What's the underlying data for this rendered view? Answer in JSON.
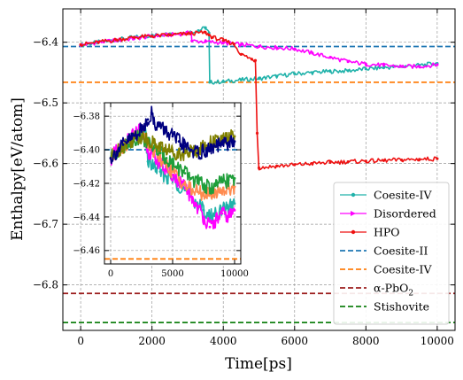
{
  "chart_data": [
    {
      "type": "line",
      "xlabel": "Time[ps]",
      "ylabel": "Enthalpy[eV/atom]",
      "xlim": [
        -500,
        10500
      ],
      "ylim": [
        -6.875,
        -6.345
      ],
      "xticks": [
        0,
        2000,
        4000,
        6000,
        8000,
        10000
      ],
      "xtick_labels": [
        "0",
        "2000",
        "4000",
        "6000",
        "8000",
        "10000"
      ],
      "yticks": [
        -6.8,
        -6.7,
        -6.6,
        -6.5,
        -6.4
      ],
      "ytick_labels": [
        "−6.8",
        "−6.7",
        "−6.6",
        "−6.5",
        "−6.4"
      ],
      "grid": true,
      "legend_position": "bottom-right",
      "series": [
        {
          "name": "Coesite-IV",
          "color": "#20b2aa",
          "marker": "dot",
          "x": [
            0,
            500,
            1000,
            1500,
            2000,
            2500,
            3000,
            3300,
            3500,
            3600,
            3620,
            4000,
            4500,
            5000,
            5500,
            6000,
            6500,
            7000,
            7500,
            8000,
            8500,
            9000,
            9500,
            10000
          ],
          "y": [
            -6.405,
            -6.4,
            -6.396,
            -6.392,
            -6.389,
            -6.386,
            -6.384,
            -6.381,
            -6.376,
            -6.385,
            -6.466,
            -6.465,
            -6.462,
            -6.46,
            -6.456,
            -6.452,
            -6.45,
            -6.448,
            -6.447,
            -6.444,
            -6.442,
            -6.44,
            -6.438,
            -6.435
          ]
        },
        {
          "name": "Disordered",
          "color": "#ff00ff",
          "marker": "arrow",
          "x": [
            0,
            500,
            1000,
            1500,
            2000,
            2500,
            3000,
            3100,
            3120,
            3500,
            4000,
            4500,
            5000,
            5500,
            6000,
            6500,
            7000,
            7500,
            8000,
            8500,
            9000,
            9500,
            10000
          ],
          "y": [
            -6.405,
            -6.4,
            -6.397,
            -6.394,
            -6.39,
            -6.388,
            -6.385,
            -6.384,
            -6.398,
            -6.399,
            -6.401,
            -6.404,
            -6.407,
            -6.409,
            -6.411,
            -6.418,
            -6.425,
            -6.432,
            -6.436,
            -6.438,
            -6.44,
            -6.44,
            -6.437
          ]
        },
        {
          "name": "HPO",
          "color": "#ee1111",
          "marker": "dot",
          "x": [
            0,
            500,
            1000,
            1500,
            2000,
            2500,
            3000,
            3500,
            3600,
            3700,
            4000,
            4300,
            4500,
            4800,
            4900,
            4950,
            5000,
            5500,
            6000,
            6500,
            7000,
            7500,
            8000,
            8500,
            9000,
            9500,
            10000
          ],
          "y": [
            -6.404,
            -6.4,
            -6.396,
            -6.392,
            -6.39,
            -6.388,
            -6.386,
            -6.384,
            -6.388,
            -6.392,
            -6.397,
            -6.403,
            -6.42,
            -6.428,
            -6.43,
            -6.55,
            -6.607,
            -6.604,
            -6.602,
            -6.6,
            -6.598,
            -6.597,
            -6.596,
            -6.595,
            -6.594,
            -6.593,
            -6.592
          ]
        }
      ],
      "reference_lines": [
        {
          "name": "Coesite-II",
          "y": -6.407,
          "color": "#1f77b4",
          "style": "dashed"
        },
        {
          "name": "Coesite-IV",
          "y": -6.466,
          "color": "#ff7f0e",
          "style": "dashed"
        },
        {
          "name": "α-PbO",
          "subscript": "2",
          "y": -6.814,
          "color": "#9b1c1c",
          "style": "dashed"
        },
        {
          "name": "Stishovite",
          "y": -6.862,
          "color": "#128012",
          "style": "dashed"
        }
      ]
    },
    {
      "type": "line",
      "role": "inset",
      "xlim": [
        -500,
        10500
      ],
      "ylim": [
        -6.468,
        -6.372
      ],
      "xticks": [
        0,
        5000,
        10000
      ],
      "xtick_labels": [
        "0",
        "5000",
        "10000"
      ],
      "yticks": [
        -6.46,
        -6.44,
        -6.42,
        -6.4,
        -6.38
      ],
      "ytick_labels": [
        "−6.46",
        "−6.44",
        "−6.42",
        "−6.40",
        "−6.38"
      ],
      "grid": true,
      "series": [
        {
          "color": "#20b2aa",
          "x": [
            0,
            500,
            1000,
            1500,
            2000,
            2500,
            2800,
            3000,
            3500,
            4000,
            4500,
            5000,
            5500,
            6000,
            6500,
            7000,
            7500,
            8000,
            8500,
            9000,
            9500,
            10000
          ],
          "y": [
            -6.405,
            -6.401,
            -6.398,
            -6.395,
            -6.393,
            -6.39,
            -6.389,
            -6.407,
            -6.41,
            -6.413,
            -6.416,
            -6.418,
            -6.421,
            -6.424,
            -6.428,
            -6.432,
            -6.436,
            -6.44,
            -6.438,
            -6.436,
            -6.434,
            -6.432
          ]
        },
        {
          "color": "#ff00ff",
          "x": [
            0,
            500,
            1000,
            1500,
            2000,
            2500,
            3000,
            3500,
            4000,
            4500,
            5000,
            5500,
            6000,
            6500,
            7000,
            7500,
            8000,
            8500,
            9000,
            9500,
            10000
          ],
          "y": [
            -6.405,
            -6.401,
            -6.397,
            -6.394,
            -6.39,
            -6.388,
            -6.401,
            -6.404,
            -6.408,
            -6.412,
            -6.415,
            -6.419,
            -6.423,
            -6.428,
            -6.434,
            -6.44,
            -6.446,
            -6.442,
            -6.438,
            -6.44,
            -6.436
          ]
        },
        {
          "color": "#ff8c50",
          "x": [
            0,
            500,
            1000,
            1500,
            2000,
            2500,
            3000,
            3500,
            4000,
            4500,
            5000,
            5500,
            6000,
            6500,
            7000,
            7500,
            8000,
            8500,
            9000,
            9500,
            10000
          ],
          "y": [
            -6.405,
            -6.401,
            -6.398,
            -6.395,
            -6.393,
            -6.391,
            -6.397,
            -6.401,
            -6.405,
            -6.409,
            -6.413,
            -6.417,
            -6.421,
            -6.424,
            -6.425,
            -6.426,
            -6.427,
            -6.425,
            -6.424,
            -6.423,
            -6.422
          ]
        },
        {
          "color": "#1f9e3a",
          "x": [
            0,
            500,
            1000,
            1500,
            2000,
            2500,
            3000,
            3500,
            4000,
            4500,
            5000,
            5500,
            6000,
            6500,
            7000,
            7500,
            8000,
            8500,
            9000,
            9500,
            10000
          ],
          "y": [
            -6.405,
            -6.401,
            -6.398,
            -6.395,
            -6.393,
            -6.392,
            -6.396,
            -6.399,
            -6.402,
            -6.405,
            -6.408,
            -6.411,
            -6.414,
            -6.417,
            -6.419,
            -6.421,
            -6.423,
            -6.421,
            -6.419,
            -6.418,
            -6.417
          ]
        },
        {
          "color": "#808000",
          "x": [
            0,
            500,
            1000,
            1500,
            2000,
            2500,
            3000,
            3500,
            4000,
            4500,
            5000,
            5500,
            6000,
            6500,
            7000,
            7500,
            8000,
            8500,
            9000,
            9500,
            10000
          ],
          "y": [
            -6.405,
            -6.401,
            -6.398,
            -6.395,
            -6.393,
            -6.392,
            -6.394,
            -6.396,
            -6.398,
            -6.4,
            -6.401,
            -6.402,
            -6.402,
            -6.401,
            -6.4,
            -6.398,
            -6.396,
            -6.395,
            -6.394,
            -6.393,
            -6.392
          ]
        },
        {
          "color": "#000080",
          "x": [
            0,
            500,
            1000,
            1500,
            2000,
            2500,
            3000,
            3300,
            3500,
            4000,
            4500,
            5000,
            5500,
            6000,
            6500,
            7000,
            7500,
            8000,
            8500,
            9000,
            9500,
            10000
          ],
          "y": [
            -6.405,
            -6.401,
            -6.397,
            -6.394,
            -6.391,
            -6.388,
            -6.382,
            -6.378,
            -6.384,
            -6.386,
            -6.389,
            -6.392,
            -6.395,
            -6.398,
            -6.4,
            -6.402,
            -6.401,
            -6.4,
            -6.398,
            -6.397,
            -6.396,
            -6.395
          ]
        }
      ],
      "reference_lines": [
        {
          "y": -6.4,
          "color": "#1f77b4",
          "style": "dashed"
        },
        {
          "y": -6.465,
          "color": "#ff7f0e",
          "style": "dashed"
        }
      ]
    }
  ]
}
